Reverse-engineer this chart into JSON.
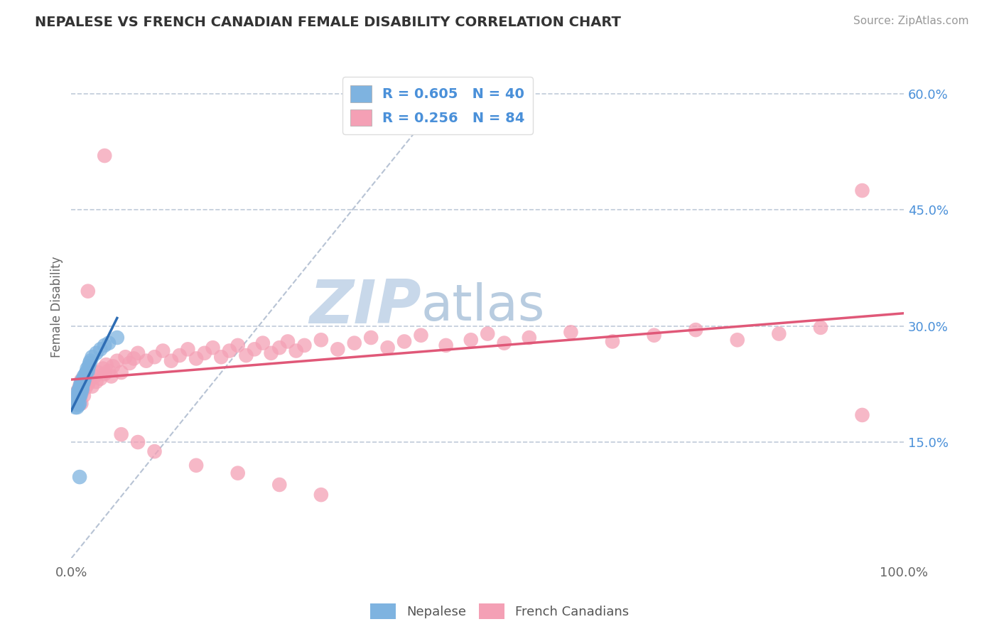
{
  "title": "NEPALESE VS FRENCH CANADIAN FEMALE DISABILITY CORRELATION CHART",
  "source_text": "Source: ZipAtlas.com",
  "ylabel": "Female Disability",
  "xlim": [
    0.0,
    1.0
  ],
  "ylim": [
    0.0,
    0.65
  ],
  "x_tick_labels": [
    "0.0%",
    "100.0%"
  ],
  "y_tick_labels_right": [
    "15.0%",
    "30.0%",
    "45.0%",
    "60.0%"
  ],
  "y_tick_values_right": [
    0.15,
    0.3,
    0.45,
    0.6
  ],
  "nepalese_R": 0.605,
  "nepalese_N": 40,
  "french_R": 0.256,
  "french_N": 84,
  "nepalese_color": "#7eb3e0",
  "french_color": "#f4a0b5",
  "nepalese_line_color": "#2e6db4",
  "french_line_color": "#e05878",
  "diagonal_color": "#b0bdd0",
  "background_color": "#ffffff",
  "legend_text_color": "#4a90d9",
  "watermark_zip_color": "#c8d8ea",
  "watermark_atlas_color": "#b8cce0",
  "nepalese_x": [
    0.005,
    0.005,
    0.006,
    0.007,
    0.007,
    0.008,
    0.008,
    0.009,
    0.009,
    0.009,
    0.01,
    0.01,
    0.01,
    0.01,
    0.011,
    0.011,
    0.012,
    0.012,
    0.013,
    0.013,
    0.013,
    0.014,
    0.014,
    0.015,
    0.015,
    0.016,
    0.017,
    0.018,
    0.019,
    0.02,
    0.021,
    0.022,
    0.023,
    0.025,
    0.03,
    0.035,
    0.04,
    0.045,
    0.055,
    0.01
  ],
  "nepalese_y": [
    0.195,
    0.205,
    0.2,
    0.195,
    0.21,
    0.205,
    0.215,
    0.198,
    0.208,
    0.218,
    0.2,
    0.21,
    0.22,
    0.215,
    0.21,
    0.225,
    0.215,
    0.225,
    0.22,
    0.23,
    0.218,
    0.225,
    0.23,
    0.228,
    0.235,
    0.232,
    0.238,
    0.24,
    0.245,
    0.242,
    0.248,
    0.252,
    0.255,
    0.26,
    0.265,
    0.27,
    0.275,
    0.278,
    0.285,
    0.105
  ],
  "french_x": [
    0.005,
    0.007,
    0.008,
    0.009,
    0.01,
    0.01,
    0.011,
    0.012,
    0.012,
    0.013,
    0.014,
    0.015,
    0.016,
    0.017,
    0.018,
    0.02,
    0.022,
    0.025,
    0.028,
    0.03,
    0.032,
    0.035,
    0.038,
    0.04,
    0.042,
    0.045,
    0.048,
    0.05,
    0.055,
    0.06,
    0.065,
    0.07,
    0.075,
    0.08,
    0.09,
    0.1,
    0.11,
    0.12,
    0.13,
    0.14,
    0.15,
    0.16,
    0.17,
    0.18,
    0.19,
    0.2,
    0.21,
    0.22,
    0.23,
    0.24,
    0.25,
    0.26,
    0.27,
    0.28,
    0.3,
    0.32,
    0.34,
    0.36,
    0.38,
    0.4,
    0.42,
    0.45,
    0.48,
    0.5,
    0.52,
    0.55,
    0.6,
    0.65,
    0.7,
    0.75,
    0.8,
    0.85,
    0.9,
    0.95,
    0.02,
    0.04,
    0.06,
    0.08,
    0.1,
    0.15,
    0.2,
    0.25,
    0.3,
    0.95
  ],
  "french_y": [
    0.2,
    0.215,
    0.198,
    0.21,
    0.205,
    0.222,
    0.218,
    0.2,
    0.23,
    0.215,
    0.225,
    0.21,
    0.235,
    0.22,
    0.228,
    0.225,
    0.23,
    0.222,
    0.235,
    0.228,
    0.24,
    0.232,
    0.245,
    0.238,
    0.25,
    0.242,
    0.235,
    0.248,
    0.255,
    0.24,
    0.26,
    0.252,
    0.258,
    0.265,
    0.255,
    0.26,
    0.268,
    0.255,
    0.262,
    0.27,
    0.258,
    0.265,
    0.272,
    0.26,
    0.268,
    0.275,
    0.262,
    0.27,
    0.278,
    0.265,
    0.272,
    0.28,
    0.268,
    0.275,
    0.282,
    0.27,
    0.278,
    0.285,
    0.272,
    0.28,
    0.288,
    0.275,
    0.282,
    0.29,
    0.278,
    0.285,
    0.292,
    0.28,
    0.288,
    0.295,
    0.282,
    0.29,
    0.298,
    0.185,
    0.345,
    0.52,
    0.16,
    0.15,
    0.138,
    0.12,
    0.11,
    0.095,
    0.082,
    0.475
  ]
}
